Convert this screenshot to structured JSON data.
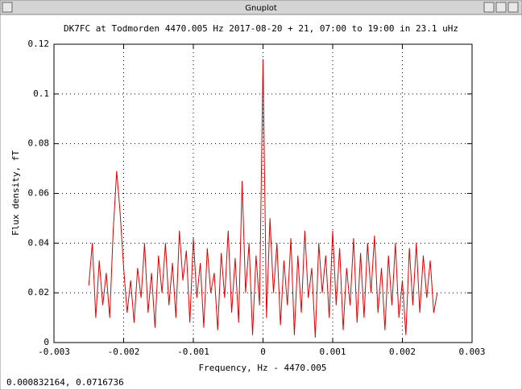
{
  "window": {
    "title": "Gnuplot",
    "status": "0.000832164,  0.0716736"
  },
  "chart_data": {
    "type": "line",
    "title": "DK7FC at Todmorden 4470.005 Hz 2017-08-20 + 21, 07:00 to 19:00 in 23.1 uHz",
    "xlabel": "Frequency, Hz - 4470.005",
    "ylabel": "Flux density, fT",
    "color": "#e00000",
    "grid": true,
    "xlim": [
      -0.003,
      0.003
    ],
    "xticks": [
      -0.003,
      -0.002,
      -0.001,
      0,
      0.001,
      0.002,
      0.003
    ],
    "ylim": [
      0,
      0.12
    ],
    "yticks": [
      0,
      0.02,
      0.04,
      0.06,
      0.08,
      0.1,
      0.12
    ],
    "x": [
      -0.0025,
      -0.00245,
      -0.0024,
      -0.00235,
      -0.0023,
      -0.00225,
      -0.0022,
      -0.00215,
      -0.0021,
      -0.00205,
      -0.002,
      -0.00195,
      -0.0019,
      -0.00185,
      -0.0018,
      -0.00175,
      -0.0017,
      -0.00165,
      -0.0016,
      -0.00155,
      -0.0015,
      -0.00145,
      -0.0014,
      -0.00135,
      -0.0013,
      -0.00125,
      -0.0012,
      -0.00115,
      -0.0011,
      -0.00105,
      -0.001,
      -0.00095,
      -0.0009,
      -0.00085,
      -0.0008,
      -0.00075,
      -0.0007,
      -0.00065,
      -0.0006,
      -0.00055,
      -0.0005,
      -0.00045,
      -0.0004,
      -0.00035,
      -0.0003,
      -0.00025,
      -0.0002,
      -0.00015,
      -0.0001,
      -5e-05,
      0,
      5e-05,
      0.0001,
      0.00015,
      0.0002,
      0.00025,
      0.0003,
      0.00035,
      0.0004,
      0.00045,
      0.0005,
      0.00055,
      0.0006,
      0.00065,
      0.0007,
      0.00075,
      0.0008,
      0.00085,
      0.0009,
      0.00095,
      0.001,
      0.00105,
      0.0011,
      0.00115,
      0.0012,
      0.00125,
      0.0013,
      0.00135,
      0.0014,
      0.00145,
      0.0015,
      0.00155,
      0.0016,
      0.00165,
      0.0017,
      0.00175,
      0.0018,
      0.00185,
      0.0019,
      0.00195,
      0.002,
      0.00205,
      0.0021,
      0.00215,
      0.0022,
      0.00225,
      0.0023,
      0.00235,
      0.0024,
      0.00245,
      0.0025
    ],
    "values": [
      0.023,
      0.04,
      0.01,
      0.033,
      0.015,
      0.028,
      0.01,
      0.045,
      0.069,
      0.052,
      0.03,
      0.012,
      0.025,
      0.008,
      0.03,
      0.018,
      0.04,
      0.012,
      0.028,
      0.006,
      0.035,
      0.02,
      0.04,
      0.015,
      0.032,
      0.01,
      0.045,
      0.025,
      0.037,
      0.008,
      0.042,
      0.018,
      0.032,
      0.006,
      0.038,
      0.02,
      0.028,
      0.005,
      0.036,
      0.018,
      0.045,
      0.012,
      0.034,
      0.008,
      0.065,
      0.02,
      0.04,
      0.003,
      0.035,
      0.015,
      0.114,
      0.01,
      0.05,
      0.02,
      0.04,
      0.007,
      0.033,
      0.015,
      0.042,
      0.003,
      0.035,
      0.012,
      0.045,
      0.018,
      0.03,
      0.002,
      0.04,
      0.02,
      0.035,
      0.01,
      0.045,
      0.015,
      0.038,
      0.005,
      0.03,
      0.015,
      0.042,
      0.008,
      0.036,
      0.01,
      0.04,
      0.02,
      0.043,
      0.012,
      0.03,
      0.005,
      0.035,
      0.015,
      0.04,
      0.01,
      0.025,
      0.003,
      0.038,
      0.015,
      0.04,
      0.012,
      0.035,
      0.018,
      0.033,
      0.012,
      0.02
    ]
  }
}
